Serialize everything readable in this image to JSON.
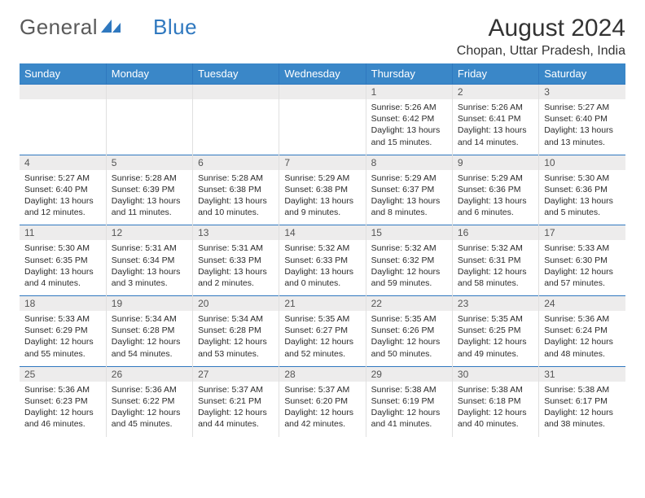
{
  "logo": {
    "word1": "General",
    "word2": "Blue"
  },
  "title": "August 2024",
  "location": "Chopan, Uttar Pradesh, India",
  "colors": {
    "header_bg": "#3a87c8",
    "accent_border": "#2f78bf",
    "numrow_bg": "#edecec",
    "text": "#2b2b2b",
    "logo_gray": "#5a5a5a"
  },
  "day_names": [
    "Sunday",
    "Monday",
    "Tuesday",
    "Wednesday",
    "Thursday",
    "Friday",
    "Saturday"
  ],
  "weeks": [
    {
      "nums": [
        "",
        "",
        "",
        "",
        "1",
        "2",
        "3"
      ],
      "cells": [
        null,
        null,
        null,
        null,
        {
          "sunrise": "5:26 AM",
          "sunset": "6:42 PM",
          "daylight": "13 hours and 15 minutes."
        },
        {
          "sunrise": "5:26 AM",
          "sunset": "6:41 PM",
          "daylight": "13 hours and 14 minutes."
        },
        {
          "sunrise": "5:27 AM",
          "sunset": "6:40 PM",
          "daylight": "13 hours and 13 minutes."
        }
      ]
    },
    {
      "nums": [
        "4",
        "5",
        "6",
        "7",
        "8",
        "9",
        "10"
      ],
      "cells": [
        {
          "sunrise": "5:27 AM",
          "sunset": "6:40 PM",
          "daylight": "13 hours and 12 minutes."
        },
        {
          "sunrise": "5:28 AM",
          "sunset": "6:39 PM",
          "daylight": "13 hours and 11 minutes."
        },
        {
          "sunrise": "5:28 AM",
          "sunset": "6:38 PM",
          "daylight": "13 hours and 10 minutes."
        },
        {
          "sunrise": "5:29 AM",
          "sunset": "6:38 PM",
          "daylight": "13 hours and 9 minutes."
        },
        {
          "sunrise": "5:29 AM",
          "sunset": "6:37 PM",
          "daylight": "13 hours and 8 minutes."
        },
        {
          "sunrise": "5:29 AM",
          "sunset": "6:36 PM",
          "daylight": "13 hours and 6 minutes."
        },
        {
          "sunrise": "5:30 AM",
          "sunset": "6:36 PM",
          "daylight": "13 hours and 5 minutes."
        }
      ]
    },
    {
      "nums": [
        "11",
        "12",
        "13",
        "14",
        "15",
        "16",
        "17"
      ],
      "cells": [
        {
          "sunrise": "5:30 AM",
          "sunset": "6:35 PM",
          "daylight": "13 hours and 4 minutes."
        },
        {
          "sunrise": "5:31 AM",
          "sunset": "6:34 PM",
          "daylight": "13 hours and 3 minutes."
        },
        {
          "sunrise": "5:31 AM",
          "sunset": "6:33 PM",
          "daylight": "13 hours and 2 minutes."
        },
        {
          "sunrise": "5:32 AM",
          "sunset": "6:33 PM",
          "daylight": "13 hours and 0 minutes."
        },
        {
          "sunrise": "5:32 AM",
          "sunset": "6:32 PM",
          "daylight": "12 hours and 59 minutes."
        },
        {
          "sunrise": "5:32 AM",
          "sunset": "6:31 PM",
          "daylight": "12 hours and 58 minutes."
        },
        {
          "sunrise": "5:33 AM",
          "sunset": "6:30 PM",
          "daylight": "12 hours and 57 minutes."
        }
      ]
    },
    {
      "nums": [
        "18",
        "19",
        "20",
        "21",
        "22",
        "23",
        "24"
      ],
      "cells": [
        {
          "sunrise": "5:33 AM",
          "sunset": "6:29 PM",
          "daylight": "12 hours and 55 minutes."
        },
        {
          "sunrise": "5:34 AM",
          "sunset": "6:28 PM",
          "daylight": "12 hours and 54 minutes."
        },
        {
          "sunrise": "5:34 AM",
          "sunset": "6:28 PM",
          "daylight": "12 hours and 53 minutes."
        },
        {
          "sunrise": "5:35 AM",
          "sunset": "6:27 PM",
          "daylight": "12 hours and 52 minutes."
        },
        {
          "sunrise": "5:35 AM",
          "sunset": "6:26 PM",
          "daylight": "12 hours and 50 minutes."
        },
        {
          "sunrise": "5:35 AM",
          "sunset": "6:25 PM",
          "daylight": "12 hours and 49 minutes."
        },
        {
          "sunrise": "5:36 AM",
          "sunset": "6:24 PM",
          "daylight": "12 hours and 48 minutes."
        }
      ]
    },
    {
      "nums": [
        "25",
        "26",
        "27",
        "28",
        "29",
        "30",
        "31"
      ],
      "cells": [
        {
          "sunrise": "5:36 AM",
          "sunset": "6:23 PM",
          "daylight": "12 hours and 46 minutes."
        },
        {
          "sunrise": "5:36 AM",
          "sunset": "6:22 PM",
          "daylight": "12 hours and 45 minutes."
        },
        {
          "sunrise": "5:37 AM",
          "sunset": "6:21 PM",
          "daylight": "12 hours and 44 minutes."
        },
        {
          "sunrise": "5:37 AM",
          "sunset": "6:20 PM",
          "daylight": "12 hours and 42 minutes."
        },
        {
          "sunrise": "5:38 AM",
          "sunset": "6:19 PM",
          "daylight": "12 hours and 41 minutes."
        },
        {
          "sunrise": "5:38 AM",
          "sunset": "6:18 PM",
          "daylight": "12 hours and 40 minutes."
        },
        {
          "sunrise": "5:38 AM",
          "sunset": "6:17 PM",
          "daylight": "12 hours and 38 minutes."
        }
      ]
    }
  ],
  "labels": {
    "sunrise": "Sunrise: ",
    "sunset": "Sunset: ",
    "daylight": "Daylight: "
  }
}
